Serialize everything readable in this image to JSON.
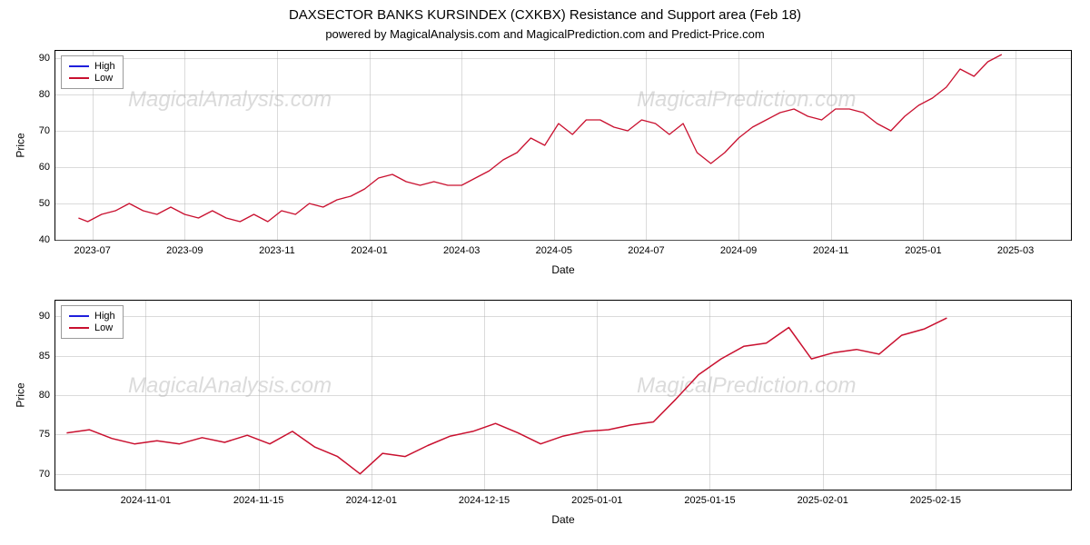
{
  "title": "DAXSECTOR BANKS KURSINDEX (CXKBX) Resistance and Support area (Feb 18)",
  "subtitle": "powered by MagicalAnalysis.com and MagicalPrediction.com and Predict-Price.com",
  "legend": {
    "high": "High",
    "low": "Low"
  },
  "colors": {
    "high": "#1f1fdc",
    "low": "#c9102f",
    "grid": "#b0b0b0",
    "background": "#ffffff",
    "watermark": "#cccccc",
    "text": "#000000"
  },
  "watermarks": [
    "MagicalAnalysis.com",
    "MagicalPrediction.com"
  ],
  "chart_top": {
    "type": "line",
    "xlabel": "Date",
    "ylabel": "Price",
    "line_width": 1.3,
    "line_color": "#c9102f",
    "xlim": [
      0,
      11
    ],
    "ylim": [
      40,
      92
    ],
    "ytick_step": 10,
    "yticks": [
      40,
      50,
      60,
      70,
      80,
      90
    ],
    "xtick_labels": [
      "2023-07",
      "2023-09",
      "2023-11",
      "2024-01",
      "2024-03",
      "2024-05",
      "2024-07",
      "2024-09",
      "2024-11",
      "2025-01",
      "2025-03"
    ],
    "xtick_positions": [
      0.4,
      1.4,
      2.4,
      3.4,
      4.4,
      5.4,
      6.4,
      7.4,
      8.4,
      9.4,
      10.4
    ],
    "series_low": [
      [
        0.25,
        46
      ],
      [
        0.35,
        45
      ],
      [
        0.5,
        47
      ],
      [
        0.65,
        48
      ],
      [
        0.8,
        50
      ],
      [
        0.95,
        48
      ],
      [
        1.1,
        47
      ],
      [
        1.25,
        49
      ],
      [
        1.4,
        47
      ],
      [
        1.55,
        46
      ],
      [
        1.7,
        48
      ],
      [
        1.85,
        46
      ],
      [
        2.0,
        45
      ],
      [
        2.15,
        47
      ],
      [
        2.3,
        45
      ],
      [
        2.45,
        48
      ],
      [
        2.6,
        47
      ],
      [
        2.75,
        50
      ],
      [
        2.9,
        49
      ],
      [
        3.05,
        51
      ],
      [
        3.2,
        52
      ],
      [
        3.35,
        54
      ],
      [
        3.5,
        57
      ],
      [
        3.65,
        58
      ],
      [
        3.8,
        56
      ],
      [
        3.95,
        55
      ],
      [
        4.1,
        56
      ],
      [
        4.25,
        55
      ],
      [
        4.4,
        55
      ],
      [
        4.55,
        57
      ],
      [
        4.7,
        59
      ],
      [
        4.85,
        62
      ],
      [
        5.0,
        64
      ],
      [
        5.15,
        68
      ],
      [
        5.3,
        66
      ],
      [
        5.45,
        72
      ],
      [
        5.6,
        69
      ],
      [
        5.75,
        73
      ],
      [
        5.9,
        73
      ],
      [
        6.05,
        71
      ],
      [
        6.2,
        70
      ],
      [
        6.35,
        73
      ],
      [
        6.5,
        72
      ],
      [
        6.65,
        69
      ],
      [
        6.8,
        72
      ],
      [
        6.95,
        64
      ],
      [
        7.1,
        61
      ],
      [
        7.25,
        64
      ],
      [
        7.4,
        68
      ],
      [
        7.55,
        71
      ],
      [
        7.7,
        73
      ],
      [
        7.85,
        75
      ],
      [
        8.0,
        76
      ],
      [
        8.15,
        74
      ],
      [
        8.3,
        73
      ],
      [
        8.45,
        76
      ],
      [
        8.6,
        76
      ],
      [
        8.75,
        75
      ],
      [
        8.9,
        72
      ],
      [
        9.05,
        70
      ],
      [
        9.2,
        74
      ],
      [
        9.35,
        77
      ],
      [
        9.5,
        79
      ],
      [
        9.65,
        82
      ],
      [
        9.8,
        87
      ],
      [
        9.95,
        85
      ],
      [
        10.1,
        89
      ],
      [
        10.25,
        91
      ]
    ]
  },
  "chart_bot": {
    "type": "line",
    "xlabel": "Date",
    "ylabel": "Price",
    "line_width": 1.5,
    "line_color": "#c9102f",
    "xlim": [
      0,
      9
    ],
    "ylim": [
      68,
      92
    ],
    "ytick_step": 5,
    "yticks": [
      70,
      75,
      80,
      85,
      90
    ],
    "xtick_labels": [
      "2024-11-01",
      "2024-11-15",
      "2024-12-01",
      "2024-12-15",
      "2025-01-01",
      "2025-01-15",
      "2025-02-01",
      "2025-02-15"
    ],
    "xtick_positions": [
      0.8,
      1.8,
      2.8,
      3.8,
      4.8,
      5.8,
      6.8,
      7.8
    ],
    "series_low": [
      [
        0.1,
        75.2
      ],
      [
        0.3,
        75.6
      ],
      [
        0.5,
        74.5
      ],
      [
        0.7,
        73.8
      ],
      [
        0.9,
        74.2
      ],
      [
        1.1,
        73.8
      ],
      [
        1.3,
        74.6
      ],
      [
        1.5,
        74.0
      ],
      [
        1.7,
        74.9
      ],
      [
        1.9,
        73.8
      ],
      [
        2.1,
        75.4
      ],
      [
        2.3,
        73.4
      ],
      [
        2.5,
        72.2
      ],
      [
        2.7,
        70.0
      ],
      [
        2.9,
        72.6
      ],
      [
        3.1,
        72.2
      ],
      [
        3.3,
        73.6
      ],
      [
        3.5,
        74.8
      ],
      [
        3.7,
        75.4
      ],
      [
        3.9,
        76.4
      ],
      [
        4.1,
        75.2
      ],
      [
        4.3,
        73.8
      ],
      [
        4.5,
        74.8
      ],
      [
        4.7,
        75.4
      ],
      [
        4.9,
        75.6
      ],
      [
        5.1,
        76.2
      ],
      [
        5.3,
        76.6
      ],
      [
        5.5,
        79.5
      ],
      [
        5.7,
        82.6
      ],
      [
        5.9,
        84.6
      ],
      [
        6.1,
        86.2
      ],
      [
        6.3,
        86.6
      ],
      [
        6.5,
        88.6
      ],
      [
        6.7,
        84.6
      ],
      [
        6.9,
        85.4
      ],
      [
        7.1,
        85.8
      ],
      [
        7.3,
        85.2
      ],
      [
        7.5,
        87.6
      ],
      [
        7.7,
        88.4
      ],
      [
        7.9,
        89.8
      ]
    ]
  }
}
